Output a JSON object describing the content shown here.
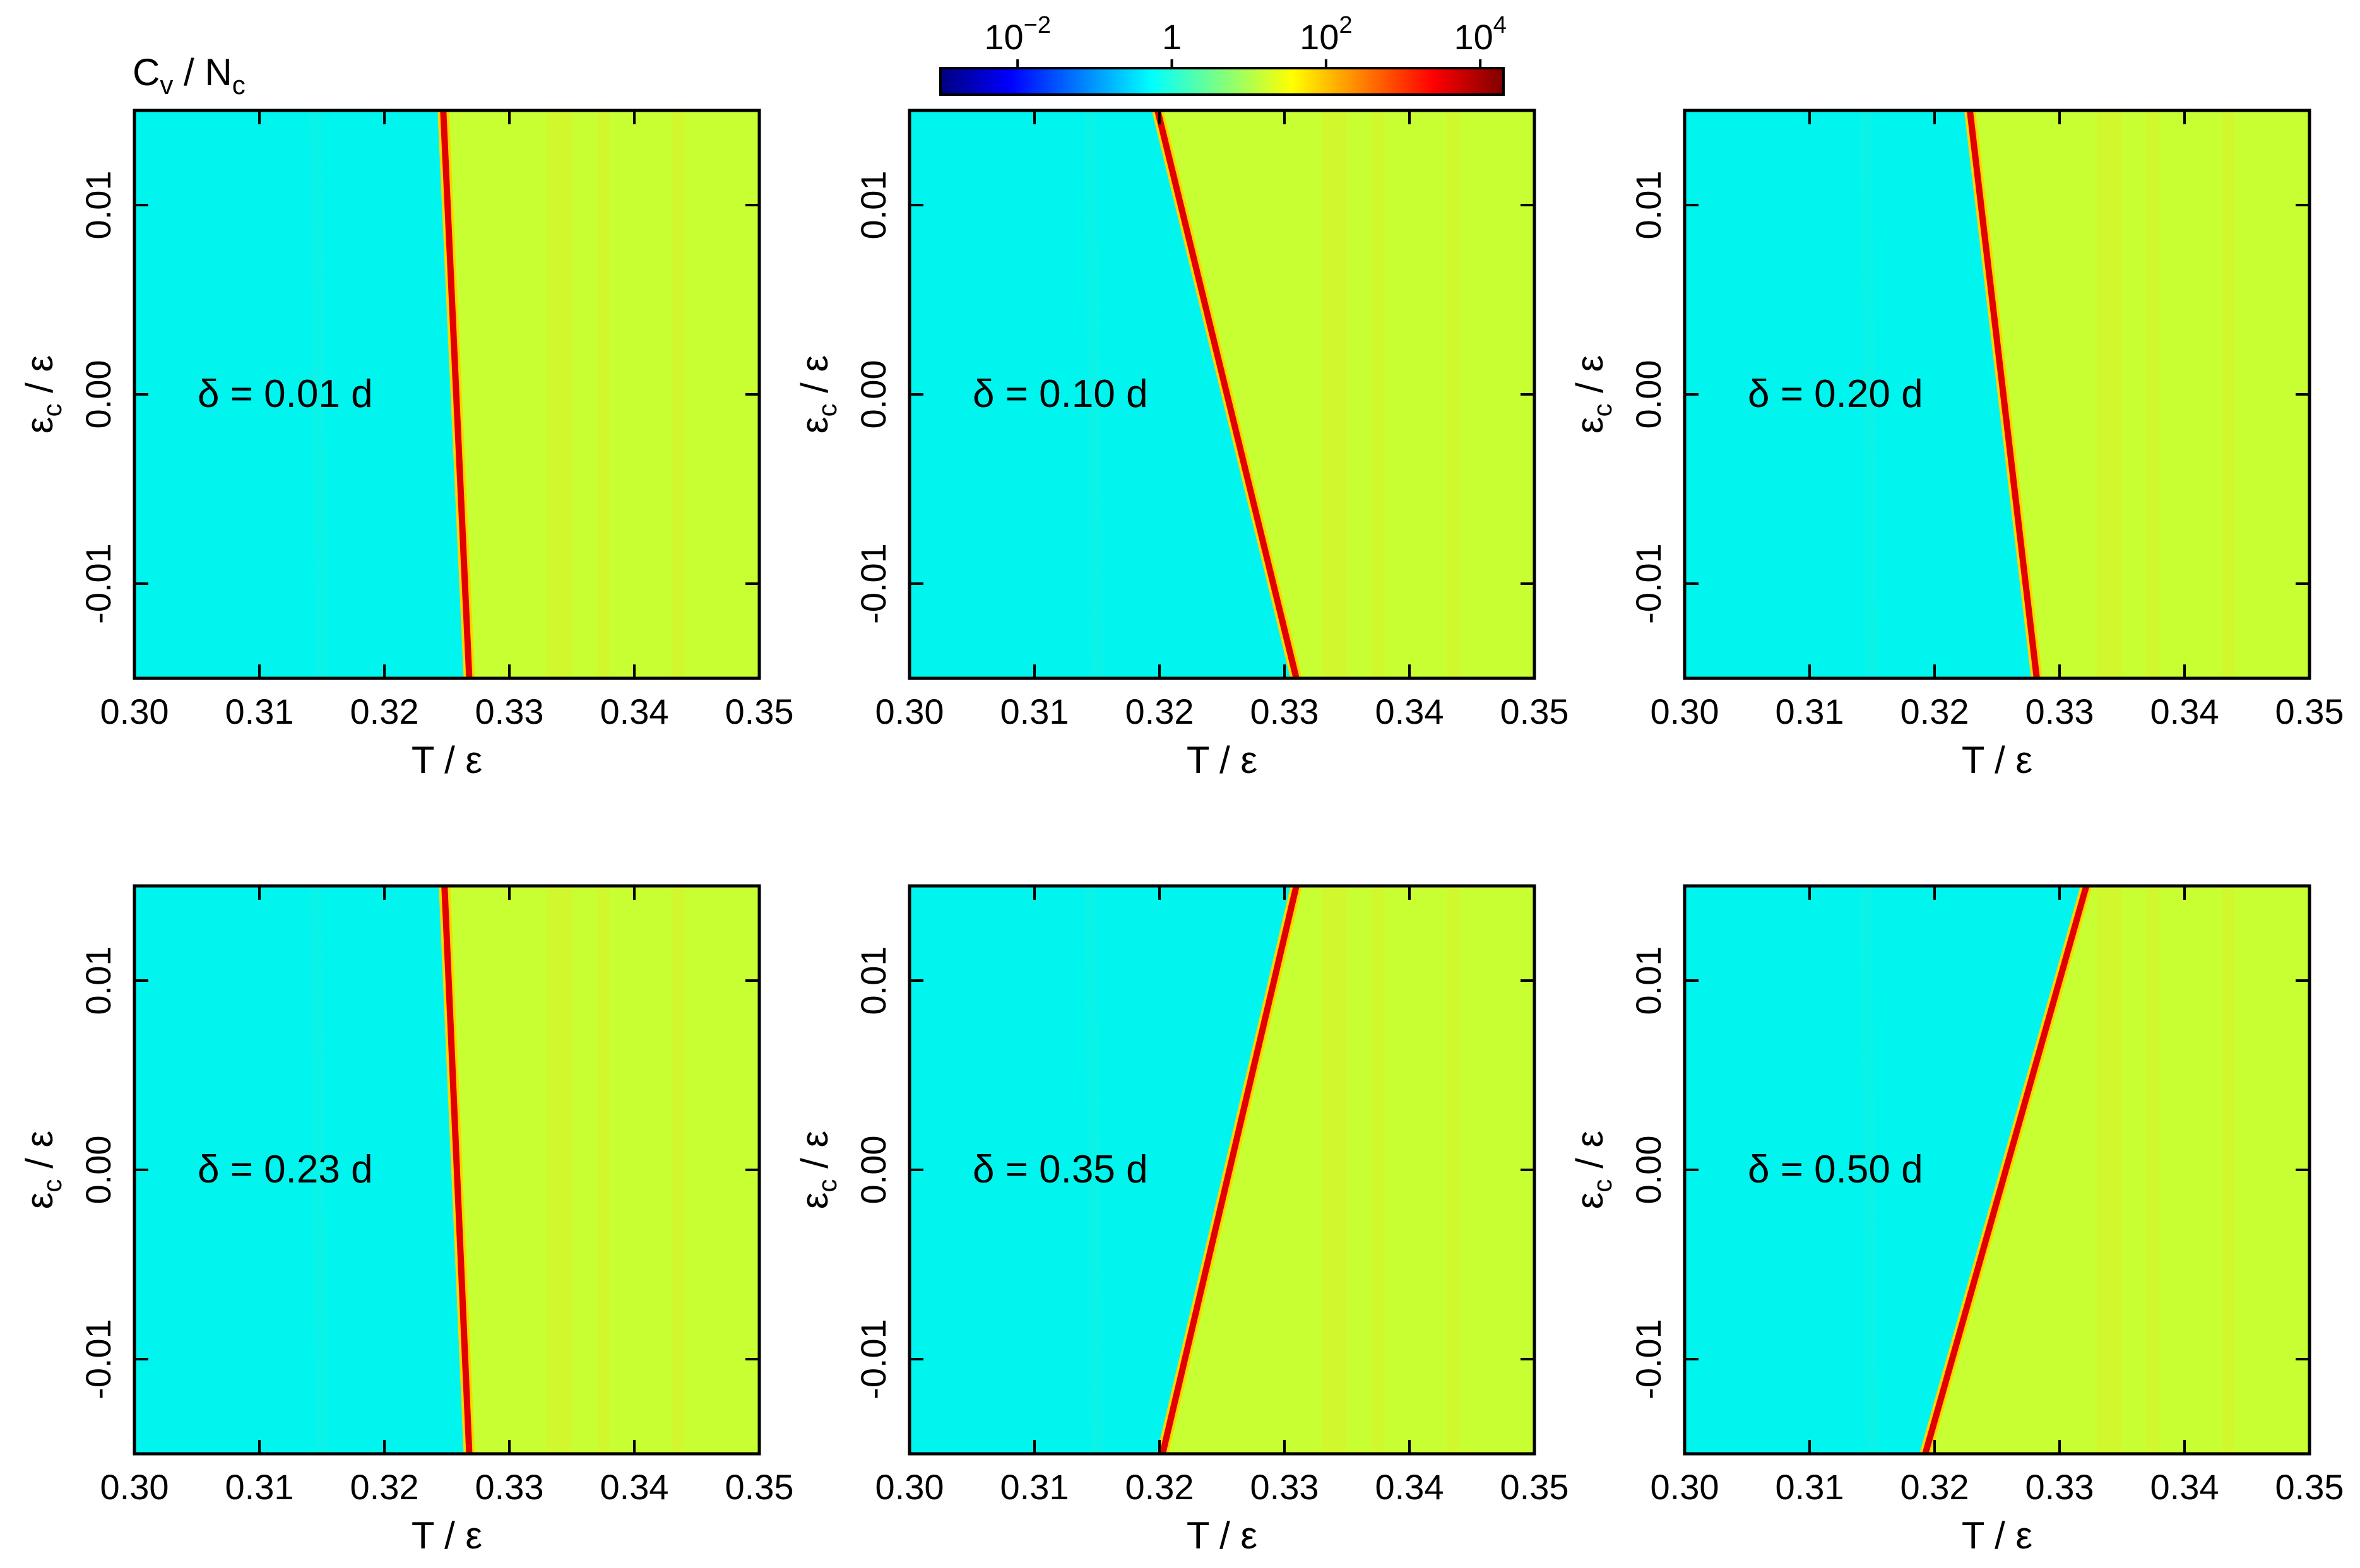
{
  "figure": {
    "colorbar_title": "Cv / Nc",
    "colorbar": {
      "scale": "log",
      "range": [
        0.001,
        20000
      ],
      "ticks": [
        {
          "value": 0.01,
          "base": "10",
          "exp": "−2"
        },
        {
          "value": 1,
          "base": "1",
          "exp": ""
        },
        {
          "value": 100,
          "base": "10",
          "exp": "2"
        },
        {
          "value": 10000,
          "base": "10",
          "exp": "4"
        }
      ],
      "colors": [
        "#00007f",
        "#0000ff",
        "#007fff",
        "#00ffff",
        "#7fff7f",
        "#ffff00",
        "#ff7f00",
        "#ff0000",
        "#7f0000"
      ]
    },
    "fill_colors": {
      "cold": "#00f5ef",
      "cold_alt": "#11f1e2",
      "hot": "#c8ff33",
      "hot_alt": "#d4f52a",
      "peak_outer": "#ffd500",
      "peak_inner": "#e00000"
    }
  },
  "chart_data": [
    {
      "type": "heatmap",
      "annotation": "δ = 0.01 d",
      "xlabel": "T / ε",
      "ylabel_main": "ε",
      "ylabel_sub": "c",
      "ylabel_rest": " / ε",
      "xlim": [
        0.3,
        0.35
      ],
      "ylim": [
        -0.015,
        0.015
      ],
      "xticks": [
        "0.30",
        "0.31",
        "0.32",
        "0.33",
        "0.34",
        "0.35"
      ],
      "yticks": [
        "-0.01",
        "0.00",
        "0.01"
      ],
      "peak_line": {
        "x_at_ymax": 0.3247,
        "x_at_ymin": 0.3268
      },
      "cold_value": 0.4,
      "hot_value": 40
    },
    {
      "type": "heatmap",
      "annotation": "δ = 0.10 d",
      "xlabel": "T / ε",
      "ylabel_main": "ε",
      "ylabel_sub": "c",
      "ylabel_rest": " / ε",
      "xlim": [
        0.3,
        0.35
      ],
      "ylim": [
        -0.015,
        0.015
      ],
      "xticks": [
        "0.30",
        "0.31",
        "0.32",
        "0.33",
        "0.34",
        "0.35"
      ],
      "yticks": [
        "-0.01",
        "0.00",
        "0.01"
      ],
      "peak_line": {
        "x_at_ymax": 0.3198,
        "x_at_ymin": 0.331
      },
      "cold_value": 0.4,
      "hot_value": 40
    },
    {
      "type": "heatmap",
      "annotation": "δ = 0.20 d",
      "xlabel": "T / ε",
      "ylabel_main": "ε",
      "ylabel_sub": "c",
      "ylabel_rest": " / ε",
      "xlim": [
        0.3,
        0.35
      ],
      "ylim": [
        -0.015,
        0.015
      ],
      "xticks": [
        "0.30",
        "0.31",
        "0.32",
        "0.33",
        "0.34",
        "0.35"
      ],
      "yticks": [
        "-0.01",
        "0.00",
        "0.01"
      ],
      "peak_line": {
        "x_at_ymax": 0.3228,
        "x_at_ymin": 0.3282
      },
      "cold_value": 0.4,
      "hot_value": 40
    },
    {
      "type": "heatmap",
      "annotation": "δ = 0.23 d",
      "xlabel": "T / ε",
      "ylabel_main": "ε",
      "ylabel_sub": "c",
      "ylabel_rest": " / ε",
      "xlim": [
        0.3,
        0.35
      ],
      "ylim": [
        -0.015,
        0.015
      ],
      "xticks": [
        "0.30",
        "0.31",
        "0.32",
        "0.33",
        "0.34",
        "0.35"
      ],
      "yticks": [
        "-0.01",
        "0.00",
        "0.01"
      ],
      "peak_line": {
        "x_at_ymax": 0.3248,
        "x_at_ymin": 0.3268
      },
      "cold_value": 0.4,
      "hot_value": 40
    },
    {
      "type": "heatmap",
      "annotation": "δ = 0.35 d",
      "xlabel": "T / ε",
      "ylabel_main": "ε",
      "ylabel_sub": "c",
      "ylabel_rest": " / ε",
      "xlim": [
        0.3,
        0.35
      ],
      "ylim": [
        -0.015,
        0.015
      ],
      "xticks": [
        "0.30",
        "0.31",
        "0.32",
        "0.33",
        "0.34",
        "0.35"
      ],
      "yticks": [
        "-0.01",
        "0.00",
        "0.01"
      ],
      "peak_line": {
        "x_at_ymax": 0.331,
        "x_at_ymin": 0.3202
      },
      "cold_value": 0.4,
      "hot_value": 40
    },
    {
      "type": "heatmap",
      "annotation": "δ = 0.50 d",
      "xlabel": "T / ε",
      "ylabel_main": "ε",
      "ylabel_sub": "c",
      "ylabel_rest": " / ε",
      "xlim": [
        0.3,
        0.35
      ],
      "ylim": [
        -0.015,
        0.015
      ],
      "xticks": [
        "0.30",
        "0.31",
        "0.32",
        "0.33",
        "0.34",
        "0.35"
      ],
      "yticks": [
        "-0.01",
        "0.00",
        "0.01"
      ],
      "peak_line": {
        "x_at_ymax": 0.3322,
        "x_at_ymin": 0.3192
      },
      "cold_value": 0.4,
      "hot_value": 40
    }
  ]
}
